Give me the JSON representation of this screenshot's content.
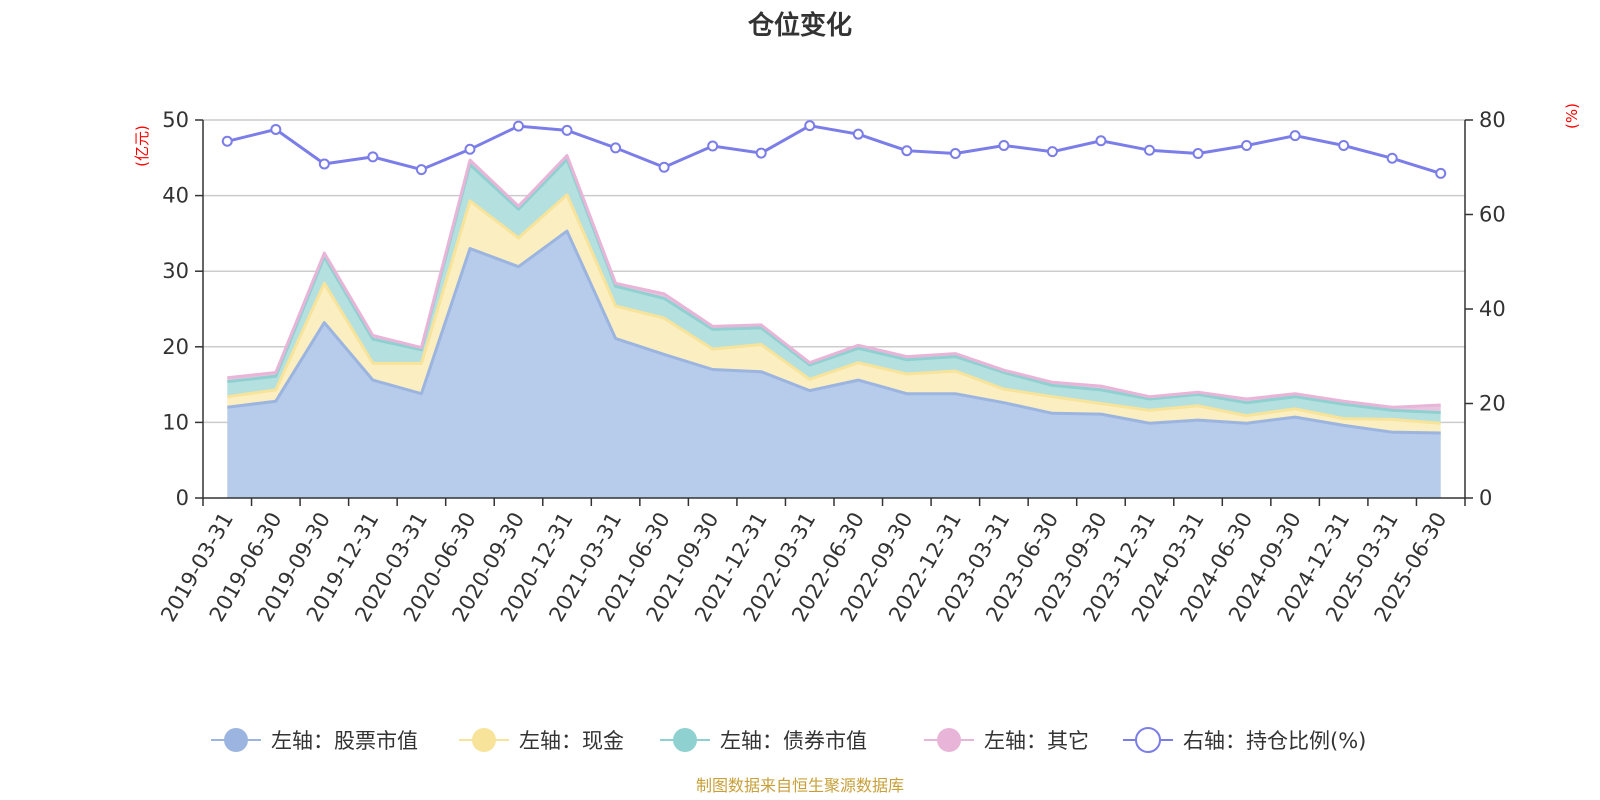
{
  "chart_data": {
    "type": "area",
    "title": "仓位变化",
    "left_unit": "(亿元)",
    "right_unit": "(%)",
    "left_ylim": [
      0,
      50
    ],
    "left_ticks": [
      0,
      10,
      20,
      30,
      40,
      50
    ],
    "right_ylim": [
      0,
      80
    ],
    "right_ticks": [
      0,
      20,
      40,
      60,
      80
    ],
    "grid": true,
    "legend_position": "bottom",
    "categories": [
      "2019-03-31",
      "2019-06-30",
      "2019-09-30",
      "2019-12-31",
      "2020-03-31",
      "2020-06-30",
      "2020-09-30",
      "2020-12-31",
      "2021-03-31",
      "2021-06-30",
      "2021-09-30",
      "2021-12-31",
      "2022-03-31",
      "2022-06-30",
      "2022-09-30",
      "2022-12-31",
      "2023-03-31",
      "2023-06-30",
      "2023-09-30",
      "2023-12-31",
      "2024-03-31",
      "2024-06-30",
      "2024-09-30",
      "2024-12-31",
      "2025-03-31",
      "2025-06-30"
    ],
    "series": [
      {
        "name": "左轴：股票市值",
        "axis": "left",
        "kind": "stacked-area",
        "color": "#9bb5e0",
        "fill": "#b7cbea",
        "values": [
          12.0,
          12.8,
          23.2,
          15.6,
          13.8,
          33.0,
          30.6,
          35.3,
          21.1,
          19.0,
          17.0,
          16.7,
          14.2,
          15.6,
          13.8,
          13.8,
          12.6,
          11.2,
          11.1,
          9.9,
          10.3,
          9.9,
          10.7,
          9.6,
          8.7,
          8.6
        ]
      },
      {
        "name": "左轴：现金",
        "axis": "left",
        "kind": "stacked-area",
        "color": "#f7e39a",
        "fill": "#fbeec0",
        "values": [
          1.4,
          1.5,
          5.2,
          2.2,
          4.0,
          6.3,
          3.8,
          4.8,
          4.3,
          4.8,
          2.7,
          3.6,
          1.5,
          2.3,
          2.6,
          3.0,
          1.8,
          2.2,
          1.4,
          1.7,
          1.9,
          1.0,
          1.1,
          0.9,
          1.7,
          1.3
        ]
      },
      {
        "name": "左轴：债券市值",
        "axis": "left",
        "kind": "stacked-area",
        "color": "#8fd0d0",
        "fill": "#b5e0e0",
        "values": [
          2.0,
          1.8,
          3.5,
          3.2,
          1.8,
          4.8,
          3.8,
          4.7,
          2.6,
          2.6,
          2.6,
          2.2,
          1.9,
          1.9,
          1.9,
          1.9,
          2.2,
          1.5,
          1.8,
          1.5,
          1.5,
          1.7,
          1.6,
          1.9,
          1.2,
          1.4
        ]
      },
      {
        "name": "左轴：其它",
        "axis": "left",
        "kind": "stacked-area",
        "color": "#e8b5d8",
        "fill": "#e8c5e0",
        "values": [
          0.5,
          0.5,
          0.5,
          0.5,
          0.3,
          0.6,
          0.4,
          0.5,
          0.4,
          0.6,
          0.4,
          0.4,
          0.3,
          0.4,
          0.4,
          0.4,
          0.3,
          0.4,
          0.5,
          0.3,
          0.3,
          0.5,
          0.4,
          0.4,
          0.4,
          1.0
        ]
      },
      {
        "name": "右轴：持仓比例(%)",
        "axis": "right",
        "kind": "line",
        "color": "#7b7de8",
        "values": [
          75.5,
          78.0,
          70.7,
          72.2,
          69.5,
          73.8,
          78.7,
          77.8,
          74.1,
          70.0,
          74.5,
          73.0,
          78.8,
          77.0,
          73.5,
          72.9,
          74.6,
          73.3,
          75.6,
          73.6,
          72.9,
          74.6,
          76.7,
          74.6,
          71.9,
          68.7
        ]
      }
    ],
    "source": "制图数据来自恒生聚源数据库"
  }
}
